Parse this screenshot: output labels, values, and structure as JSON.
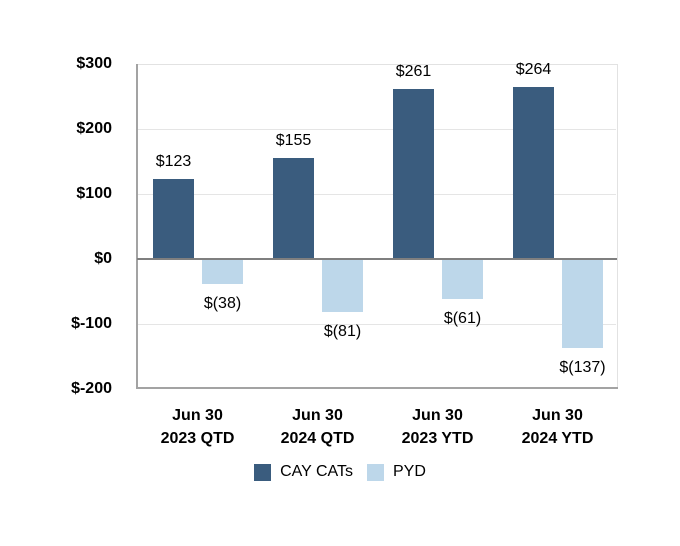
{
  "chart_data": {
    "type": "bar",
    "title": "",
    "xlabel": "",
    "ylabel": "",
    "grid": true,
    "legend_position": "bottom",
    "categories": [
      {
        "line1": "Jun 30",
        "line2": "2023 QTD"
      },
      {
        "line1": "Jun 30",
        "line2": "2024 QTD"
      },
      {
        "line1": "Jun 30",
        "line2": "2023 YTD"
      },
      {
        "line1": "Jun 30",
        "line2": "2024 YTD"
      }
    ],
    "series": [
      {
        "id": "cay-cats",
        "name": "CAY CATs",
        "color": "#3a5c7e",
        "values": [
          123,
          155,
          261,
          264
        ],
        "data_labels": [
          "$123",
          "$155",
          "$261",
          "$264"
        ]
      },
      {
        "id": "pyd",
        "name": "PYD",
        "color": "#bdd7ea",
        "values": [
          -38,
          -81,
          -61,
          -137
        ],
        "data_labels": [
          "$(38)",
          "$(81)",
          "$(61)",
          "$(137)"
        ]
      }
    ],
    "y_axis": {
      "min": -200,
      "max": 300,
      "ticks": [
        {
          "value": 300,
          "label": "$300"
        },
        {
          "value": 200,
          "label": "$200"
        },
        {
          "value": 100,
          "label": "$100"
        },
        {
          "value": 0,
          "label": "$0"
        },
        {
          "value": -100,
          "label": "$-100"
        },
        {
          "value": -200,
          "label": "$-200"
        }
      ]
    },
    "colors": {
      "gridline": "#e5e5e5",
      "zero_line": "#7f7f7f",
      "axis_line": "#a3a3a3",
      "text": "#000000",
      "background": "#ffffff"
    }
  }
}
